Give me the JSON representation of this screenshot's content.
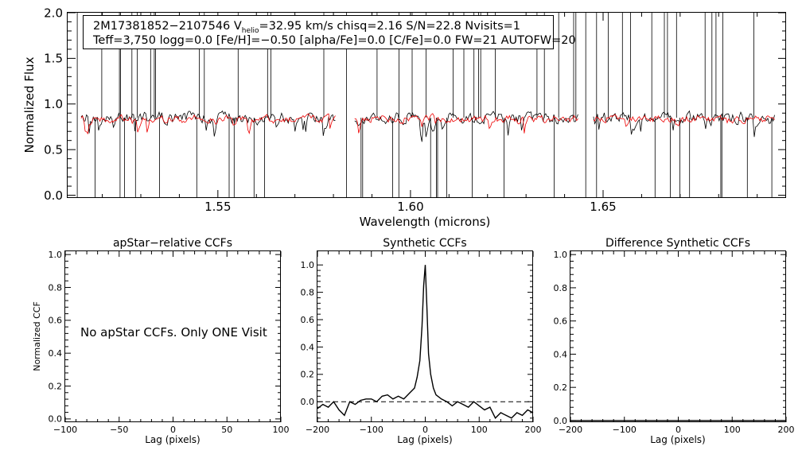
{
  "spectrum": {
    "ylabel": "Normalized Flux",
    "xlabel": "Wavelength (microns)",
    "info_line1_a": "2M17381852−2107546  V",
    "info_line1_sub": "helio",
    "info_line1_b": "=32.95 km/s  chisq=2.16  S/N=22.8  Nvisits=1",
    "info_line2": "Teff=3,750 logg=0.0 [Fe/H]=−0.50 [alpha/Fe]=0.0 [C/Fe]=0.0 FW=21 AUTOFW=20",
    "colors": {
      "observed": "#000000",
      "model": "#ee0000"
    }
  },
  "panels": {
    "apstar": {
      "title": "apStar−relative CCFs",
      "xlabel": "Lag (pixels)",
      "ylabel": "Normalized CCF",
      "message": "No apStar CCFs.  Only ONE Visit"
    },
    "synthetic": {
      "title": "Synthetic CCFs",
      "xlabel": "Lag (pixels)"
    },
    "difference": {
      "title": "Difference Synthetic CCFs",
      "xlabel": "Lag (pixels)"
    }
  },
  "chart_data": [
    {
      "type": "line",
      "id": "spectrum",
      "title": "",
      "xlabel": "Wavelength (microns)",
      "ylabel": "Normalized Flux",
      "xlim": [
        1.511,
        1.6975
      ],
      "ylim": [
        -0.03,
        2.0
      ],
      "xticks": [
        1.55,
        1.6,
        1.65
      ],
      "xtick_labels": [
        "1.55",
        "1.60",
        "1.65"
      ],
      "yticks": [
        0.0,
        0.5,
        1.0,
        1.5,
        2.0
      ],
      "ytick_labels": [
        "0.0",
        "0.5",
        "1.0",
        "1.5",
        "2.0"
      ],
      "segments": [
        [
          1.5145,
          1.5805
        ],
        [
          1.5855,
          1.6435
        ],
        [
          1.6475,
          1.6945
        ]
      ],
      "series": [
        {
          "name": "observed spectrum",
          "color": "#000000",
          "continuum": 0.85,
          "noise": 0.1
        },
        {
          "name": "model spectrum",
          "color": "#ee0000",
          "continuum": 0.84,
          "noise": 0.07
        }
      ]
    },
    {
      "type": "line",
      "id": "apstar",
      "title": "apStar−relative CCFs",
      "xlabel": "Lag (pixels)",
      "ylabel": "Normalized CCF",
      "xlim": [
        -100,
        100
      ],
      "ylim": [
        -0.02,
        1.02
      ],
      "xticks": [
        -100,
        -50,
        0,
        50,
        100
      ],
      "xtick_labels": [
        "−100",
        "−50",
        "0",
        "50",
        "100"
      ],
      "yticks": [
        0.0,
        0.2,
        0.4,
        0.6,
        0.8,
        1.0
      ],
      "ytick_labels": [
        "0.0",
        "0.2",
        "0.4",
        "0.6",
        "0.8",
        "1.0"
      ],
      "series": []
    },
    {
      "type": "line",
      "id": "synthetic",
      "title": "Synthetic CCFs",
      "xlabel": "Lag (pixels)",
      "ylabel": "",
      "xlim": [
        -200,
        200
      ],
      "ylim": [
        -0.15,
        1.1
      ],
      "xticks": [
        -200,
        -100,
        0,
        100,
        200
      ],
      "xtick_labels": [
        "−200",
        "−100",
        "0",
        "100",
        "200"
      ],
      "yticks": [
        0.0,
        0.2,
        0.4,
        0.6,
        0.8,
        1.0
      ],
      "ytick_labels": [
        "0.0",
        "0.2",
        "0.4",
        "0.6",
        "0.8",
        "1.0"
      ],
      "zero_line": true,
      "series": [
        {
          "name": "synthetic CCF",
          "x": [
            -200,
            -190,
            -180,
            -170,
            -160,
            -150,
            -140,
            -130,
            -120,
            -110,
            -100,
            -90,
            -80,
            -70,
            -60,
            -50,
            -40,
            -30,
            -20,
            -15,
            -10,
            -6,
            -3,
            0,
            3,
            6,
            10,
            15,
            20,
            30,
            40,
            50,
            60,
            70,
            80,
            90,
            100,
            110,
            120,
            130,
            140,
            150,
            160,
            170,
            180,
            190,
            200
          ],
          "y": [
            -0.05,
            -0.02,
            -0.04,
            0.0,
            -0.06,
            -0.1,
            0.0,
            -0.02,
            0.01,
            0.02,
            0.02,
            0.0,
            0.04,
            0.05,
            0.02,
            0.04,
            0.02,
            0.06,
            0.1,
            0.18,
            0.3,
            0.55,
            0.85,
            1.0,
            0.7,
            0.35,
            0.2,
            0.1,
            0.05,
            0.02,
            0.0,
            -0.03,
            0.0,
            -0.02,
            -0.04,
            0.0,
            -0.03,
            -0.06,
            -0.04,
            -0.12,
            -0.08,
            -0.1,
            -0.12,
            -0.08,
            -0.1,
            -0.06,
            -0.08
          ]
        }
      ]
    },
    {
      "type": "line",
      "id": "difference",
      "title": "Difference Synthetic CCFs",
      "xlabel": "Lag (pixels)",
      "ylabel": "",
      "xlim": [
        -200,
        200
      ],
      "ylim": [
        -0.01,
        1.02
      ],
      "xticks": [
        -200,
        -100,
        0,
        100,
        200
      ],
      "xtick_labels": [
        "−200",
        "−100",
        "0",
        "100",
        "200"
      ],
      "yticks": [
        0.0,
        0.2,
        0.4,
        0.6,
        0.8,
        1.0
      ],
      "ytick_labels": [
        "0.0",
        "0.2",
        "0.4",
        "0.6",
        "0.8",
        "1.0"
      ],
      "series": [
        {
          "name": "difference CCF",
          "x": [
            -200,
            200
          ],
          "y": [
            0.0,
            0.0
          ]
        }
      ]
    }
  ]
}
